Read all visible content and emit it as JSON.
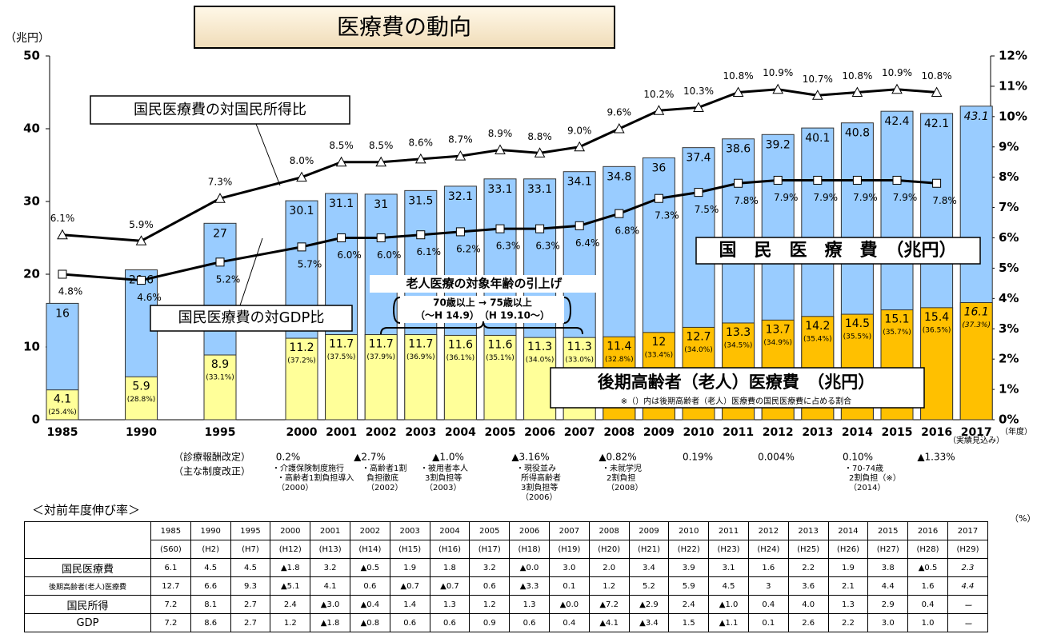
{
  "chart_data": {
    "type": "bar",
    "title": "医療費の動向",
    "ylabel": "（兆円）",
    "xlabel": "（年度）",
    "x_note": "（実績見込み）",
    "categories": [
      "1985",
      "1990",
      "1995",
      "2000",
      "2001",
      "2002",
      "2003",
      "2004",
      "2005",
      "2006",
      "2007",
      "2008",
      "2009",
      "2010",
      "2011",
      "2012",
      "2013",
      "2014",
      "2015",
      "2016",
      "2017"
    ],
    "ylim": [
      0,
      50
    ],
    "yticks": [
      0,
      10,
      20,
      30,
      40,
      50
    ],
    "y2lim": [
      0,
      12
    ],
    "y2ticks": [
      {
        "value": 0,
        "label": "0%"
      },
      {
        "value": 1,
        "label": "1%"
      },
      {
        "value": 2,
        "label": "2%"
      },
      {
        "value": 3,
        "label": "3%"
      },
      {
        "value": 4,
        "label": "4%"
      },
      {
        "value": 5,
        "label": "5%"
      },
      {
        "value": 6,
        "label": "6%"
      },
      {
        "value": 7,
        "label": "7%"
      },
      {
        "value": 8,
        "label": "8%"
      },
      {
        "value": 9,
        "label": "9%"
      },
      {
        "value": 10,
        "label": "10%"
      },
      {
        "value": 11,
        "label": "11%"
      },
      {
        "value": 12,
        "label": "12%"
      }
    ],
    "series": [
      {
        "name": "国　民　医　療　費　（兆円）",
        "kind": "bar",
        "color": "#99ccff",
        "values": [
          16.0,
          20.6,
          27.0,
          30.1,
          31.1,
          31.0,
          31.5,
          32.1,
          33.1,
          33.1,
          34.1,
          34.8,
          36.0,
          37.4,
          38.6,
          39.2,
          40.1,
          40.8,
          42.4,
          42.1,
          43.1
        ]
      },
      {
        "name": "後期高齢者（老人）医療費　（兆円）",
        "kind": "bar",
        "colors": [
          "#ffff99",
          "#ffff99",
          "#ffff99",
          "#ffff99",
          "#ffff99",
          "#ffff99",
          "#ffff99",
          "#ffff99",
          "#ffff99",
          "#ffff99",
          "#ffff99",
          "#ffc000",
          "#ffc000",
          "#ffc000",
          "#ffc000",
          "#ffc000",
          "#ffc000",
          "#ffc000",
          "#ffc000",
          "#ffc000",
          "#ffc000"
        ],
        "values": [
          4.1,
          5.9,
          8.9,
          11.2,
          11.7,
          11.7,
          11.7,
          11.6,
          11.6,
          11.3,
          11.3,
          11.4,
          12.0,
          12.7,
          13.3,
          13.7,
          14.2,
          14.5,
          15.1,
          15.4,
          16.1
        ],
        "share_labels": [
          "(25.4%)",
          "(28.8%)",
          "(33.1%)",
          "(37.2%)",
          "(37.5%)",
          "(37.9%)",
          "(36.9%)",
          "(36.1%)",
          "(35.1%)",
          "(34.0%)",
          "(33.0%)",
          "(32.8%)",
          "(33.4%)",
          "(34.0%)",
          "(34.5%)",
          "(34.9%)",
          "(35.4%)",
          "(35.5%)",
          "(35.7%)",
          "(36.5%)",
          "(37.3%)"
        ]
      },
      {
        "name": "国民医療費の対国民所得比",
        "kind": "line",
        "axis": "y2",
        "marker": "triangle",
        "color": "#000000",
        "values": [
          6.1,
          5.9,
          7.3,
          8.0,
          8.5,
          8.5,
          8.6,
          8.7,
          8.9,
          8.8,
          9.0,
          9.6,
          10.2,
          10.3,
          10.8,
          10.9,
          10.7,
          10.8,
          10.9,
          10.8,
          null
        ],
        "value_labels": [
          "6.1%",
          "5.9%",
          "7.3%",
          "8.0%",
          "8.5%",
          "8.5%",
          "8.6%",
          "8.7%",
          "8.9%",
          "8.8%",
          "9.0%",
          "9.6%",
          "10.2%",
          "10.3%",
          "10.8%",
          "10.9%",
          "10.7%",
          "10.8%",
          "10.9%",
          "10.8%",
          null
        ]
      },
      {
        "name": "国民医療費の対GDP比",
        "kind": "line",
        "axis": "y2",
        "marker": "square",
        "color": "#000000",
        "values": [
          4.8,
          4.6,
          5.2,
          5.7,
          6.0,
          6.0,
          6.1,
          6.2,
          6.3,
          6.3,
          6.4,
          6.8,
          7.3,
          7.5,
          7.8,
          7.9,
          7.9,
          7.9,
          7.9,
          7.8,
          null
        ],
        "value_labels": [
          "4.8%",
          "4.6%",
          "5.2%",
          "5.7%",
          "6.0%",
          "6.0%",
          "6.1%",
          "6.2%",
          "6.3%",
          "6.3%",
          "6.4%",
          "6.8%",
          "7.3%",
          "7.5%",
          "7.8%",
          "7.9%",
          "7.9%",
          "7.9%",
          "7.9%",
          "7.8%",
          null
        ]
      }
    ],
    "note": "※（）内は後期高齢者（老人）医療費の国民医療費に占める割合",
    "callout": {
      "title": "老人医療の対象年齢の引上げ",
      "line1": "70歳以上 → 75歳以上",
      "line2": "（～H 14.9）　（H 19.10～）"
    }
  },
  "revisions": {
    "label": "（診療報酬改定）",
    "items": [
      "0.2%",
      "▲2.7%",
      "▲1.0%",
      "▲3.16%",
      "▲0.82%",
      "0.19%",
      "0.004%",
      "0.10%",
      "▲1.33%"
    ]
  },
  "reforms": {
    "label": "（主な制度改正）",
    "items": [
      [
        "・介護保険制度施行",
        "・高齢者1割負担導入",
        "（2000）"
      ],
      [
        "・高齢者1割",
        "負担徹底",
        "（2002）"
      ],
      [
        "・被用者本人",
        "3割負担等",
        "（2003）"
      ],
      [
        "・現役並み",
        "所得高齢者",
        "3割負担等",
        "（2006）"
      ],
      [
        "・未就学児",
        "2割負担",
        "（2008）"
      ],
      [
        "・70-74歳",
        "2割負担（※）",
        "（2014）"
      ]
    ]
  },
  "table": {
    "title": "＜対前年度伸び率＞",
    "unit": "（%）",
    "years": [
      "1985",
      "1990",
      "1995",
      "2000",
      "2001",
      "2002",
      "2003",
      "2004",
      "2005",
      "2006",
      "2007",
      "2008",
      "2009",
      "2010",
      "2011",
      "2012",
      "2013",
      "2014",
      "2015",
      "2016",
      "2017"
    ],
    "eras": [
      "(S60)",
      "(H2)",
      "(H7)",
      "(H12)",
      "(H13)",
      "(H14)",
      "(H15)",
      "(H16)",
      "(H17)",
      "(H18)",
      "(H19)",
      "(H20)",
      "(H21)",
      "(H22)",
      "(H23)",
      "(H24)",
      "(H25)",
      "(H26)",
      "(H27)",
      "(H28)",
      "(H29)"
    ],
    "rows": [
      {
        "label": "国民医療費",
        "cells": [
          "6.1",
          "4.5",
          "4.5",
          "▲1.8",
          "3.2",
          "▲0.5",
          "1.9",
          "1.8",
          "3.2",
          "▲0.0",
          "3.0",
          "2.0",
          "3.4",
          "3.9",
          "3.1",
          "1.6",
          "2.2",
          "1.9",
          "3.8",
          "▲0.5",
          "2.3"
        ]
      },
      {
        "label": "後期高齢者(老人)医療費",
        "cells": [
          "12.7",
          "6.6",
          "9.3",
          "▲5.1",
          "4.1",
          "0.6",
          "▲0.7",
          "▲0.7",
          "0.6",
          "▲3.3",
          "0.1",
          "1.2",
          "5.2",
          "5.9",
          "4.5",
          "3",
          "3.6",
          "2.1",
          "4.4",
          "1.6",
          "4.4"
        ]
      },
      {
        "label": "国民所得",
        "cells": [
          "7.2",
          "8.1",
          "2.7",
          "2.4",
          "▲3.0",
          "▲0.4",
          "1.4",
          "1.3",
          "1.2",
          "1.3",
          "▲0.0",
          "▲7.2",
          "▲2.9",
          "2.4",
          "▲1.0",
          "0.4",
          "4.0",
          "1.3",
          "2.9",
          "0.4",
          "ー"
        ]
      },
      {
        "label": "GDP",
        "cells": [
          "7.2",
          "8.6",
          "2.7",
          "1.2",
          "▲1.8",
          "▲0.8",
          "0.6",
          "0.6",
          "0.9",
          "0.6",
          "0.4",
          "▲4.1",
          "▲3.4",
          "1.5",
          "▲1.1",
          "0.1",
          "2.6",
          "2.2",
          "3.0",
          "1.0",
          "ー"
        ]
      }
    ]
  }
}
